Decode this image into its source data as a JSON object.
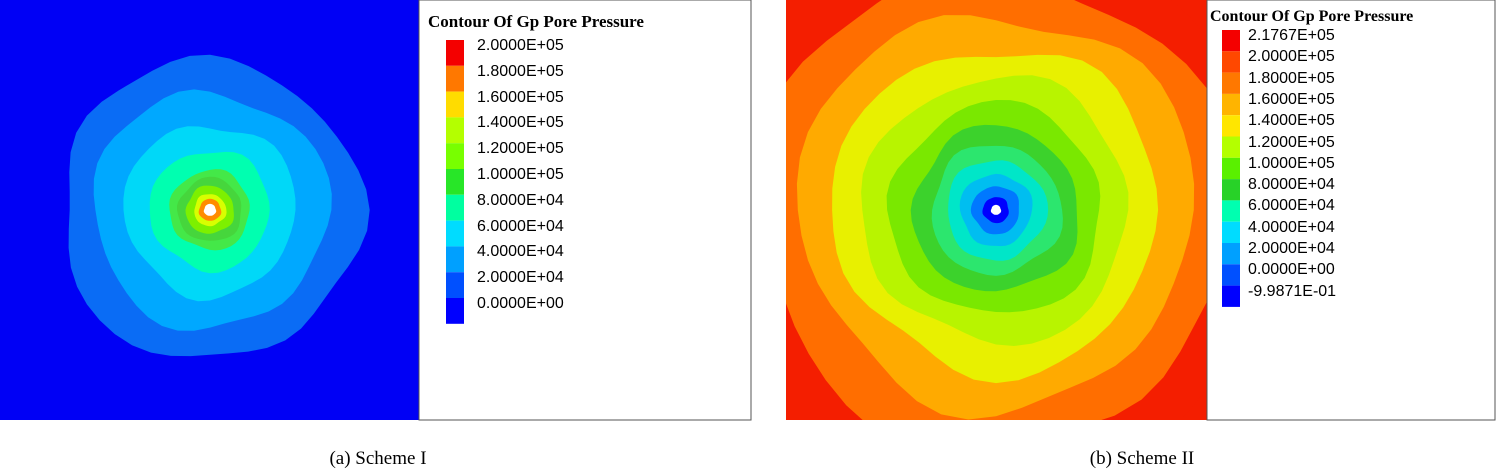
{
  "panels": [
    {
      "legend_title": "Contour Of Gp Pore Pressure",
      "legend_labels": [
        "2.0000E+05",
        "1.8000E+05",
        "1.6000E+05",
        "1.4000E+05",
        "1.2000E+05",
        "1.0000E+05",
        "8.0000E+04",
        "6.0000E+04",
        "4.0000E+04",
        "2.0000E+04",
        "0.0000E+00"
      ],
      "legend_colors": [
        "#f40000",
        "#ff7800",
        "#ffdc00",
        "#b4ff00",
        "#78ff00",
        "#28e628",
        "#00ffa0",
        "#00dcff",
        "#00a0ff",
        "#0050ff",
        "#0000ff"
      ],
      "caption": "(a) Scheme I",
      "field_colors_outer_to_inner": [
        "#0000f5",
        "#0a6cf5",
        "#00a8ff",
        "#00d8f8",
        "#00ffb0",
        "#44e848",
        "#46d63c",
        "#7df000",
        "#d8ff00",
        "#ff8c00",
        "#ffffff"
      ]
    },
    {
      "legend_title": "Contour Of Gp Pore Pressure",
      "legend_labels": [
        "2.1767E+05",
        "2.0000E+05",
        "1.8000E+05",
        "1.6000E+05",
        "1.4000E+05",
        "1.2000E+05",
        "1.0000E+05",
        "8.0000E+04",
        "6.0000E+04",
        "4.0000E+04",
        "2.0000E+04",
        "0.0000E+00",
        "-9.9871E-01"
      ],
      "legend_colors": [
        "#f40000",
        "#ff4800",
        "#ff7800",
        "#ffb400",
        "#ffe600",
        "#b4ff00",
        "#5af000",
        "#28d228",
        "#00ffb0",
        "#00dcff",
        "#00a0ff",
        "#0050ff",
        "#0000ff"
      ],
      "caption": "(b) Scheme II",
      "field_colors_outer_to_inner": [
        "#f41e00",
        "#ff6e00",
        "#ffaa00",
        "#e8f000",
        "#b8f400",
        "#7ae800",
        "#3cd22c",
        "#2ce66e",
        "#00e6c8",
        "#00bef0",
        "#0078ff",
        "#0000ff",
        "#ffffff"
      ]
    }
  ]
}
